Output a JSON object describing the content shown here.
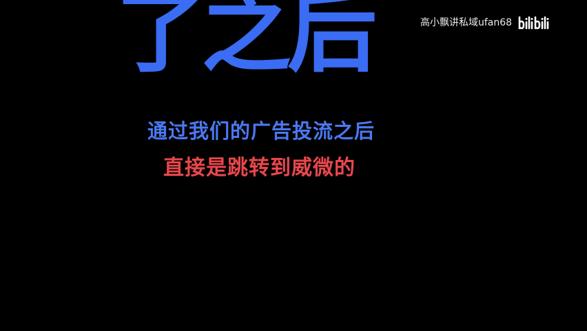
{
  "video": {
    "title_fragment": "了之后",
    "subtitles": [
      "通过我们的广告投流之后",
      "直接是跳转到威微的"
    ]
  },
  "watermark": {
    "text": "高小飘讲私域ufan68",
    "logo": "bilibili"
  },
  "colors": {
    "background": "#000000",
    "title_blue": "#3a6cf4",
    "caption_blue": "#4a78f0",
    "caption_red": "#e8474c",
    "watermark": "#ffffff"
  }
}
